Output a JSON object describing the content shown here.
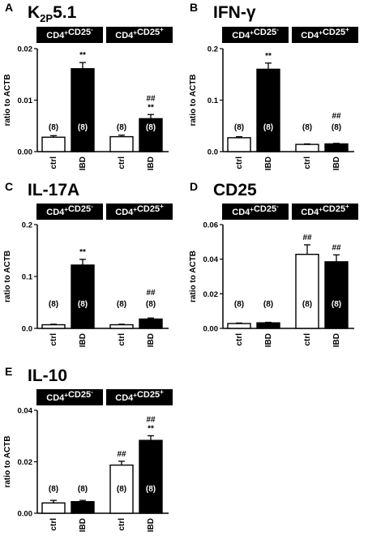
{
  "figure": {
    "background": "#ffffff",
    "foreground": "#000000"
  },
  "chart_data": [
    {
      "panel_letter": "A",
      "title": "K2P5.1",
      "type": "bar",
      "ylabel": "ratio to ACTB",
      "ylim": [
        0,
        0.02
      ],
      "yticks": [
        "0.00",
        "0.01",
        "0.02"
      ],
      "groups": [
        "CD4+CD25-",
        "CD4+CD25+"
      ],
      "categories": [
        "ctrl",
        "IBD",
        "ctrl",
        "IBD"
      ],
      "fill": [
        "white",
        "black",
        "white",
        "black"
      ],
      "values": [
        0.0028,
        0.0161,
        0.0029,
        0.0064
      ],
      "errors": [
        0.0003,
        0.0012,
        0.0003,
        0.0008
      ],
      "n_labels": [
        "(8)",
        "(8)",
        "(8)",
        "(8)"
      ],
      "sig_labels": [
        [],
        [
          "**"
        ],
        [],
        [
          "##",
          "**"
        ]
      ]
    },
    {
      "panel_letter": "B",
      "title": "IFN-γ",
      "type": "bar",
      "ylabel": "ratio to ACTB",
      "ylim": [
        0,
        0.2
      ],
      "yticks": [
        "0.0",
        "0.1",
        "0.2"
      ],
      "groups": [
        "CD4+CD25-",
        "CD4+CD25+"
      ],
      "categories": [
        "ctrl",
        "IBD",
        "ctrl",
        "IBD"
      ],
      "fill": [
        "white",
        "black",
        "white",
        "black"
      ],
      "values": [
        0.027,
        0.16,
        0.014,
        0.015
      ],
      "errors": [
        0.002,
        0.012,
        0.001,
        0.001
      ],
      "n_labels": [
        "(8)",
        "(8)",
        "(8)",
        "(8)"
      ],
      "sig_labels": [
        [],
        [
          "**"
        ],
        [],
        [
          "##"
        ]
      ]
    },
    {
      "panel_letter": "C",
      "title": "IL-17A",
      "type": "bar",
      "ylabel": "ratio to ACTB",
      "ylim": [
        0,
        0.2
      ],
      "yticks": [
        "0.0",
        "0.1",
        "0.2"
      ],
      "groups": [
        "CD4+CD25-",
        "CD4+CD25+"
      ],
      "categories": [
        "ctrl",
        "IBD",
        "ctrl",
        "IBD"
      ],
      "fill": [
        "white",
        "black",
        "white",
        "black"
      ],
      "values": [
        0.007,
        0.122,
        0.007,
        0.018
      ],
      "errors": [
        0.001,
        0.011,
        0.001,
        0.002
      ],
      "n_labels": [
        "(8)",
        "(8)",
        "(8)",
        "(8)"
      ],
      "sig_labels": [
        [],
        [
          "**"
        ],
        [],
        [
          "##"
        ]
      ]
    },
    {
      "panel_letter": "D",
      "title": "CD25",
      "type": "bar",
      "ylabel": "ratio to ACTB",
      "ylim": [
        0,
        0.06
      ],
      "yticks": [
        "0.00",
        "0.02",
        "0.04",
        "0.06"
      ],
      "groups": [
        "CD4+CD25-",
        "CD4+CD25+"
      ],
      "categories": [
        "ctrl",
        "IBD",
        "ctrl",
        "IBD"
      ],
      "fill": [
        "white",
        "black",
        "white",
        "black"
      ],
      "values": [
        0.0028,
        0.0032,
        0.0428,
        0.0385
      ],
      "errors": [
        0.0003,
        0.0003,
        0.0055,
        0.004
      ],
      "n_labels": [
        "(8)",
        "(8)",
        "(8)",
        "(8)"
      ],
      "sig_labels": [
        [],
        [],
        [
          "##"
        ],
        [
          "##"
        ]
      ]
    },
    {
      "panel_letter": "E",
      "title": "IL-10",
      "type": "bar",
      "ylabel": "ratio to ACTB",
      "ylim": [
        0,
        0.04
      ],
      "yticks": [
        "0.00",
        "0.02",
        "0.04"
      ],
      "groups": [
        "CD4+CD25-",
        "CD4+CD25+"
      ],
      "categories": [
        "ctrl",
        "IBD",
        "ctrl",
        "IBD"
      ],
      "fill": [
        "white",
        "black",
        "white",
        "black"
      ],
      "values": [
        0.004,
        0.0045,
        0.0187,
        0.0283
      ],
      "errors": [
        0.001,
        0.0005,
        0.0015,
        0.0018
      ],
      "n_labels": [
        "(8)",
        "(8)",
        "(8)",
        "(8)"
      ],
      "sig_labels": [
        [],
        [],
        [
          "##"
        ],
        [
          "##",
          "**"
        ]
      ]
    }
  ]
}
